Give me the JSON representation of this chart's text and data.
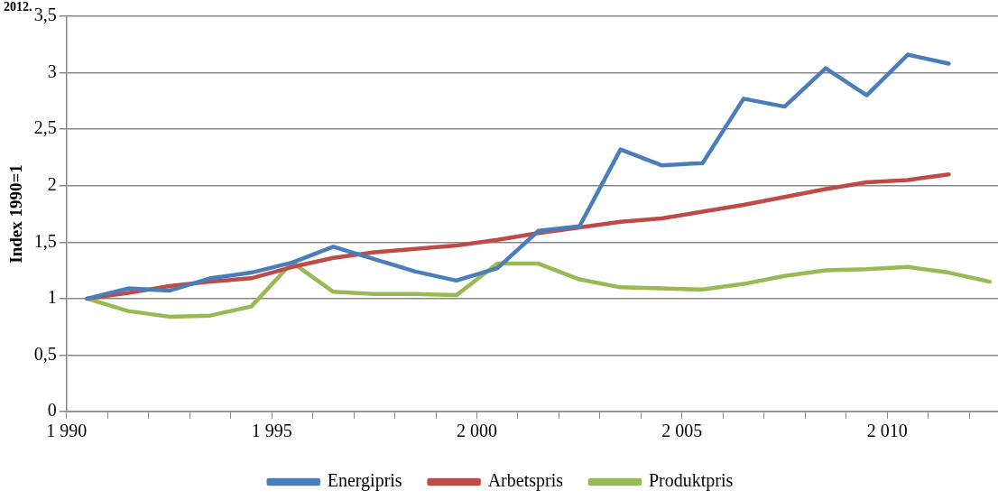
{
  "chart_data": {
    "type": "line",
    "ylabel": "Index 1990=1",
    "annotations": [
      "2012."
    ],
    "x": [
      1990.5,
      1991.5,
      1992.5,
      1993.5,
      1994.5,
      1995.5,
      1996.5,
      1997.5,
      1998.5,
      1999.5,
      2000.5,
      2001.5,
      2002.5,
      2003.5,
      2004.5,
      2005.5,
      2006.5,
      2007.5,
      2008.5,
      2009.5,
      2010.5,
      2011.5,
      2012.5
    ],
    "series": [
      {
        "name": "Energipris",
        "color": "#4a7ebb",
        "values": [
          1.0,
          1.09,
          1.07,
          1.18,
          1.23,
          1.32,
          1.46,
          1.35,
          1.24,
          1.16,
          1.27,
          1.6,
          1.64,
          2.32,
          2.18,
          2.2,
          2.77,
          2.7,
          3.04,
          2.8,
          3.16,
          3.08,
          null
        ]
      },
      {
        "name": "Arbetspris",
        "color": "#be4b48",
        "values": [
          1.0,
          1.05,
          1.11,
          1.15,
          1.18,
          1.28,
          1.36,
          1.41,
          1.44,
          1.47,
          1.52,
          1.58,
          1.63,
          1.68,
          1.71,
          1.77,
          1.83,
          1.9,
          1.97,
          2.03,
          2.05,
          2.1,
          null
        ]
      },
      {
        "name": "Produktpris",
        "color": "#98b954",
        "values": [
          1.0,
          0.89,
          0.84,
          0.85,
          0.93,
          1.32,
          1.06,
          1.04,
          1.04,
          1.03,
          1.31,
          1.31,
          1.17,
          1.1,
          1.09,
          1.08,
          1.13,
          1.2,
          1.25,
          1.26,
          1.28,
          1.23,
          1.15
        ]
      }
    ],
    "xlim": [
      1990,
      2012.7
    ],
    "xticks": [
      {
        "value": 1990,
        "label": "1 990"
      },
      {
        "value": 1991,
        "label": null
      },
      {
        "value": 1992,
        "label": null
      },
      {
        "value": 1993,
        "label": null
      },
      {
        "value": 1994,
        "label": null
      },
      {
        "value": 1995,
        "label": "1 995"
      },
      {
        "value": 1996,
        "label": null
      },
      {
        "value": 1997,
        "label": null
      },
      {
        "value": 1998,
        "label": null
      },
      {
        "value": 1999,
        "label": null
      },
      {
        "value": 2000,
        "label": "2 000"
      },
      {
        "value": 2001,
        "label": null
      },
      {
        "value": 2002,
        "label": null
      },
      {
        "value": 2003,
        "label": null
      },
      {
        "value": 2004,
        "label": null
      },
      {
        "value": 2005,
        "label": "2 005"
      },
      {
        "value": 2006,
        "label": null
      },
      {
        "value": 2007,
        "label": null
      },
      {
        "value": 2008,
        "label": null
      },
      {
        "value": 2009,
        "label": null
      },
      {
        "value": 2010,
        "label": "2 010"
      },
      {
        "value": 2011,
        "label": null
      },
      {
        "value": 2012,
        "label": null
      }
    ],
    "ylim": [
      0,
      3.5
    ],
    "yticks": [
      0,
      {
        "value": 0.5,
        "label": "0,5"
      },
      1,
      {
        "value": 1.5,
        "label": "1,5"
      },
      2,
      {
        "value": 2.5,
        "label": "2,5"
      },
      3,
      {
        "value": 3.5,
        "label": "3,5"
      }
    ],
    "grid": "y",
    "legend": "bottom",
    "marker": "none",
    "line_style": "solid"
  }
}
